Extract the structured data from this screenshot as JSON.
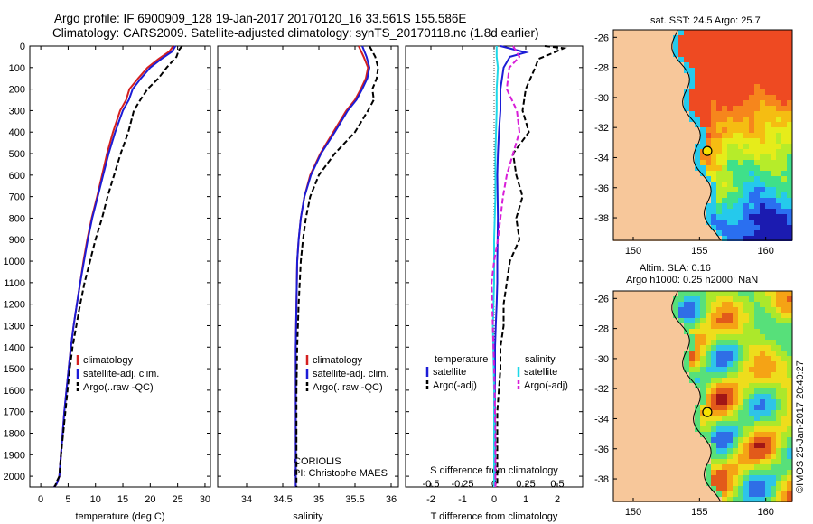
{
  "header": {
    "title_line1": "Argo profile: IF 6900909_128 19-Jan-2017 20170120_16 33.561S 155.586E",
    "title_line2": "Climatology: CARS2009. Satellite-adjusted climatology: synTS_20170118.nc (1.8d earlier)"
  },
  "colors": {
    "climatology": "#d42020",
    "satellite": "#1c1cd6",
    "argo": "#000000",
    "satellite_s": "#1ed8e8",
    "argo_s": "#d81ed8"
  },
  "chart_data": [
    {
      "type": "line",
      "id": "temperature",
      "xlabel": "temperature (deg C)",
      "ylabel": "",
      "xlim": [
        -2,
        31
      ],
      "ylim": [
        2050,
        0
      ],
      "xticks": [
        0,
        5,
        10,
        15,
        20,
        25,
        30
      ],
      "yticks": [
        0,
        100,
        200,
        300,
        400,
        500,
        600,
        700,
        800,
        900,
        1000,
        1100,
        1200,
        1300,
        1400,
        1500,
        1600,
        1700,
        1800,
        1900,
        2000
      ],
      "legend": [
        "climatology",
        "satellite-adj. clim.",
        "Argo(..raw -QC)"
      ],
      "series": [
        {
          "name": "climatology",
          "color": "#d42020",
          "dash": "",
          "x": [
            24.2,
            23.5,
            21.5,
            19.5,
            17.8,
            16.2,
            15.6,
            14.5,
            13.2,
            12.1,
            11.2,
            10.3,
            9.3,
            8.5,
            7.8,
            7.2,
            6.6,
            6.0,
            5.5,
            5.1,
            4.7,
            4.3,
            4.0,
            3.7,
            3.4,
            3.0,
            2.8,
            2.6,
            2.4
          ],
          "y": [
            0,
            25,
            60,
            100,
            150,
            200,
            250,
            300,
            400,
            500,
            600,
            700,
            800,
            900,
            1000,
            1100,
            1200,
            1300,
            1400,
            1500,
            1600,
            1700,
            1800,
            1900,
            2000,
            2030,
            2040,
            2045,
            2050
          ]
        },
        {
          "name": "satellite-adj. clim.",
          "color": "#1c1cd6",
          "dash": "",
          "x": [
            24.6,
            24.0,
            22.0,
            20.0,
            18.3,
            16.8,
            16.1,
            15.0,
            13.6,
            12.4,
            11.4,
            10.4,
            9.4,
            8.6,
            7.9,
            7.2,
            6.6,
            6.0,
            5.5,
            5.1,
            4.7,
            4.3,
            4.0,
            3.7,
            3.4,
            3.0,
            2.8,
            2.6,
            2.4
          ],
          "y": [
            0,
            25,
            60,
            100,
            150,
            200,
            250,
            300,
            400,
            500,
            600,
            700,
            800,
            900,
            1000,
            1100,
            1200,
            1300,
            1400,
            1500,
            1600,
            1700,
            1800,
            1900,
            2000,
            2030,
            2040,
            2045,
            2050
          ]
        },
        {
          "name": "Argo(..raw -QC)",
          "color": "#000000",
          "dash": "6,3",
          "x": [
            25.8,
            25.2,
            24.8,
            23.0,
            21.5,
            19.5,
            18.2,
            17.0,
            16.0,
            14.6,
            13.4,
            12.2,
            11.2,
            10.0,
            9.0,
            8.0,
            7.2,
            6.5,
            5.8,
            5.3,
            4.9,
            4.5,
            4.1,
            3.7,
            3.4,
            3.0,
            2.7,
            2.5
          ],
          "y": [
            0,
            20,
            50,
            100,
            150,
            200,
            250,
            300,
            400,
            500,
            600,
            700,
            800,
            900,
            1000,
            1100,
            1200,
            1300,
            1400,
            1500,
            1600,
            1700,
            1800,
            1900,
            2000,
            2020,
            2040,
            2050
          ]
        }
      ]
    },
    {
      "type": "line",
      "id": "salinity",
      "xlabel": "salinity",
      "ylabel": "",
      "xlim": [
        33.6,
        36.1
      ],
      "ylim": [
        2050,
        0
      ],
      "xticks": [
        34,
        34.5,
        35,
        35.5,
        36
      ],
      "xtick_labels": [
        "34",
        "34.5",
        "35",
        "35.5",
        "36"
      ],
      "legend": [
        "climatology",
        "satellite-adj. clim.",
        "Argo(..raw -QC)"
      ],
      "series": [
        {
          "name": "climatology",
          "color": "#d42020",
          "dash": "",
          "x": [
            35.55,
            35.62,
            35.68,
            35.65,
            35.58,
            35.5,
            35.38,
            35.2,
            35.02,
            34.88,
            34.8,
            34.75,
            34.72,
            34.7,
            34.69,
            34.68,
            34.68,
            34.68,
            34.68
          ],
          "y": [
            0,
            50,
            100,
            150,
            200,
            250,
            300,
            400,
            500,
            600,
            700,
            800,
            900,
            1000,
            1200,
            1400,
            1600,
            1800,
            2050
          ]
        },
        {
          "name": "satellite-adj. clim.",
          "color": "#1c1cd6",
          "dash": "",
          "x": [
            35.6,
            35.66,
            35.7,
            35.67,
            35.6,
            35.52,
            35.4,
            35.22,
            35.03,
            34.89,
            34.8,
            34.75,
            34.72,
            34.7,
            34.69,
            34.68,
            34.68,
            34.68,
            34.68
          ],
          "y": [
            0,
            50,
            100,
            150,
            200,
            250,
            300,
            400,
            500,
            600,
            700,
            800,
            900,
            1000,
            1200,
            1400,
            1600,
            1800,
            2050
          ]
        },
        {
          "name": "Argo(..raw -QC)",
          "color": "#000000",
          "dash": "6,3",
          "x": [
            35.7,
            35.78,
            35.82,
            35.8,
            35.74,
            35.76,
            35.68,
            35.5,
            35.22,
            35.0,
            34.88,
            34.82,
            34.78,
            34.75,
            34.72,
            34.7,
            34.69,
            34.69,
            34.69
          ],
          "y": [
            0,
            50,
            100,
            150,
            200,
            250,
            300,
            400,
            500,
            600,
            700,
            800,
            900,
            1000,
            1200,
            1400,
            1600,
            1800,
            2050
          ]
        }
      ]
    },
    {
      "type": "line",
      "id": "difference",
      "xlabel": "T difference from climatology",
      "xlabel_top": "S difference from climatology",
      "xlim_T": [
        -2.8,
        2.8
      ],
      "xticks_T": [
        -2,
        -1,
        0,
        1,
        2
      ],
      "xlim_S": [
        -0.7,
        0.7
      ],
      "xticks_S": [
        -0.5,
        -0.25,
        0,
        0.25,
        0.5
      ],
      "xtick_labels_S": [
        "-0.5",
        "-0.25",
        "0",
        "0.25",
        "0.5"
      ],
      "ylim": [
        2050,
        0
      ],
      "legend_temperature": {
        "heading": "temperature",
        "items": [
          "satellite",
          "Argo(-adj)"
        ]
      },
      "legend_salinity": {
        "heading": "salinity",
        "items": [
          "satellite",
          "Argo(-adj)"
        ]
      },
      "series": [
        {
          "name": "T satellite",
          "axis": "T",
          "color": "#1c1cd6",
          "dash": "",
          "x": [
            0.2,
            1.0,
            0.5,
            0.3,
            0.2,
            0.2,
            0.15,
            0.12,
            0.1,
            0.12,
            0.1,
            0.1,
            0.08,
            0.05,
            0.03,
            0.03,
            0.02,
            0.02,
            0.02
          ],
          "y": [
            0,
            30,
            50,
            100,
            200,
            300,
            400,
            500,
            600,
            800,
            1000,
            1100,
            1200,
            1300,
            1400,
            1500,
            1700,
            1900,
            2050
          ]
        },
        {
          "name": "T Argo(-adj)",
          "axis": "T",
          "color": "#000000",
          "dash": "6,3",
          "x": [
            1.6,
            2.2,
            1.9,
            1.4,
            1.3,
            1.0,
            0.9,
            1.1,
            0.8,
            0.6,
            0.7,
            0.9,
            0.7,
            0.8,
            0.5,
            0.4,
            0.3,
            0.3,
            0.2,
            0.2,
            0.1,
            0.1,
            0.1
          ],
          "y": [
            0,
            10,
            30,
            60,
            100,
            200,
            300,
            400,
            460,
            500,
            600,
            700,
            800,
            900,
            1000,
            1100,
            1200,
            1300,
            1400,
            1500,
            1700,
            1900,
            2050
          ]
        },
        {
          "name": "S satellite",
          "axis": "S",
          "color": "#1ed8e8",
          "dash": "",
          "x": [
            0.02,
            0.02,
            0.03,
            0.02,
            0.02,
            0.01,
            0.01,
            0.0,
            0.0,
            -0.01,
            0.0,
            0.0
          ],
          "y": [
            0,
            50,
            100,
            200,
            300,
            500,
            700,
            900,
            1100,
            1300,
            1600,
            2050
          ]
        },
        {
          "name": "S Argo(-adj)",
          "axis": "S",
          "color": "#d81ed8",
          "dash": "6,3",
          "x": [
            0.15,
            0.2,
            0.12,
            0.1,
            0.18,
            0.2,
            0.15,
            0.1,
            0.07,
            0.05,
            0.03,
            0.0,
            -0.02,
            -0.01,
            0.0,
            0.01,
            0.01
          ],
          "y": [
            0,
            50,
            100,
            200,
            300,
            400,
            500,
            600,
            700,
            800,
            900,
            1000,
            1100,
            1300,
            1500,
            1800,
            2050
          ]
        }
      ]
    },
    {
      "type": "heatmap",
      "id": "sst-map",
      "title": "sat. SST: 24.5 Argo: 25.7",
      "xlim": [
        148.5,
        162
      ],
      "ylim": [
        -39.5,
        -25.5
      ],
      "xticks": [
        150,
        155,
        160
      ],
      "yticks": [
        -26,
        -28,
        -30,
        -32,
        -34,
        -36,
        -38
      ],
      "marker": {
        "lon": 155.586,
        "lat": -33.561
      }
    },
    {
      "type": "heatmap",
      "id": "sla-map",
      "title_line1": "Altim. SLA: 0.16",
      "title_line2": "Argo h1000: 0.25 h2000: NaN",
      "xlim": [
        148.5,
        162
      ],
      "ylim": [
        -39.5,
        -25.5
      ],
      "xticks": [
        150,
        155,
        160
      ],
      "yticks": [
        -26,
        -28,
        -30,
        -32,
        -34,
        -36,
        -38
      ],
      "marker": {
        "lon": 155.586,
        "lat": -33.561
      }
    }
  ],
  "annotations": {
    "source": "CORIOLIS",
    "pi": "PI: Christophe MAES",
    "stamp": "©IMOS 25-Jan-2017 20:40:27"
  }
}
